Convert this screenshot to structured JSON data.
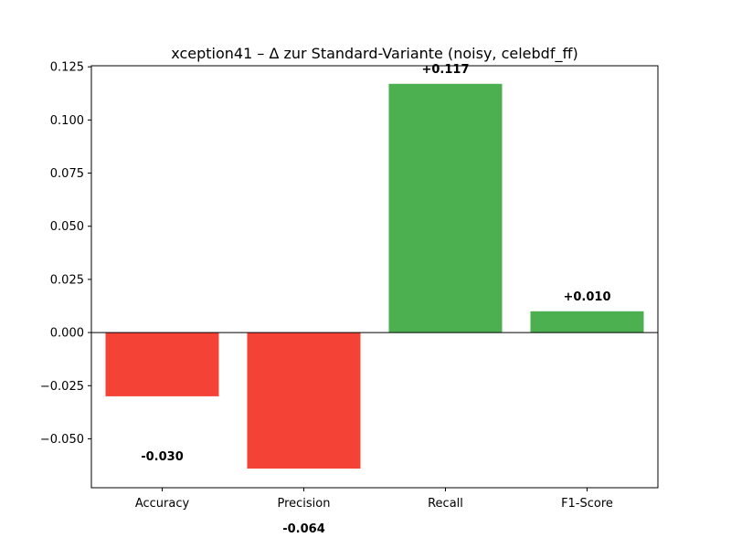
{
  "chart_data": {
    "type": "bar",
    "title": "xception41 – Δ zur Standard-Variante (noisy, celebdf_ff)",
    "xlabel": "",
    "ylabel": "",
    "categories": [
      "Accuracy",
      "Precision",
      "Recall",
      "F1-Score"
    ],
    "values": [
      -0.03,
      -0.064,
      0.117,
      0.01
    ],
    "data_labels": [
      "-0.030",
      "-0.064",
      "+0.117",
      "+0.010"
    ],
    "ylim": [
      -0.073,
      0.1255
    ],
    "yticks": [
      -0.05,
      -0.025,
      0.0,
      0.025,
      0.05,
      0.075,
      0.1,
      0.125
    ],
    "ytick_labels": [
      "−0.050",
      "−0.025",
      "0.000",
      "0.025",
      "0.050",
      "0.075",
      "0.100",
      "0.125"
    ],
    "grid": false,
    "colors": {
      "negative": "#f44336",
      "positive": "#4caf50",
      "zero_line": "#000000"
    }
  }
}
